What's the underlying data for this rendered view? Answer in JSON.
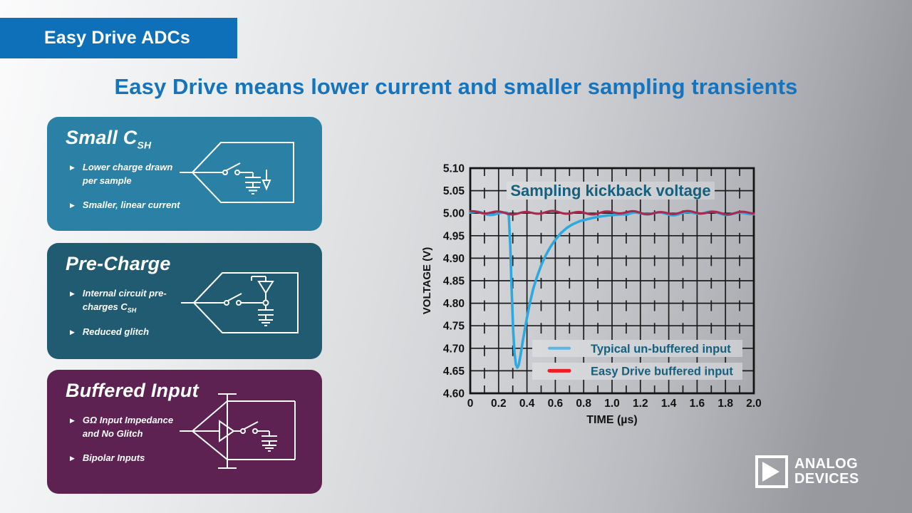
{
  "badge": {
    "label": "Easy Drive ADCs"
  },
  "title": "Easy Drive means lower current and smaller sampling transients",
  "bullet_glyph": "▶",
  "colors": {
    "badge_bg": "#0e70b9",
    "title_text": "#1673bd",
    "chart_text_teal": "#16607d",
    "axis_text": "#121212",
    "grid_line": "#1b1b1b"
  },
  "cards": [
    {
      "id": "small-csh",
      "bg": "#2b81a5",
      "heading": {
        "text": "Small C",
        "sub": "SH"
      },
      "bullets": [
        {
          "lines": [
            "Lower charge drawn",
            "per sample"
          ],
          "sub": ""
        },
        {
          "lines": [
            "Smaller, linear current"
          ],
          "sub": ""
        }
      ]
    },
    {
      "id": "pre-charge",
      "bg": "#215b71",
      "heading": {
        "text": "Pre-Charge",
        "sub": ""
      },
      "bullets": [
        {
          "lines": [
            "Internal circuit pre-",
            "charges C"
          ],
          "sub": "SH"
        },
        {
          "lines": [
            "Reduced glitch"
          ],
          "sub": ""
        }
      ]
    },
    {
      "id": "buffered-input",
      "bg": "#5d2252",
      "heading": {
        "text": "Buffered Input",
        "sub": ""
      },
      "bullets": [
        {
          "lines": [
            "GΩ Input Impedance",
            "and No Glitch"
          ],
          "sub": ""
        },
        {
          "lines": [
            "Bipolar Inputs"
          ],
          "sub": ""
        }
      ]
    }
  ],
  "chart_data": {
    "type": "line",
    "title": "Sampling kickback voltage",
    "xlabel": "TIME (µs)",
    "ylabel": "VOLTAGE (V)",
    "xlim": [
      0,
      2.0
    ],
    "ylim": [
      4.6,
      5.1
    ],
    "x_tick_values": [
      0,
      0.2,
      0.4,
      0.6,
      0.8,
      1.0,
      1.2,
      1.4,
      1.6,
      1.8,
      2.0
    ],
    "x_tick_labels": [
      "0",
      "0.2",
      "0.4",
      "0.6",
      "0.8",
      "1.0",
      "1.2",
      "1.4",
      "1.6",
      "1.8",
      "2.0"
    ],
    "y_tick_values": [
      4.6,
      4.65,
      4.7,
      4.75,
      4.8,
      4.85,
      4.9,
      4.95,
      5.0,
      5.05,
      5.1
    ],
    "y_tick_labels": [
      "4.60",
      "4.65",
      "4.70",
      "4.75",
      "4.80",
      "4.85",
      "4.90",
      "4.95",
      "5.00",
      "5.05",
      "5.10"
    ],
    "minor_x_step": 0.1,
    "grid": true,
    "legend_position": "inside-lower-right",
    "series": [
      {
        "name": "Typical un-buffered input",
        "line_color": "#2ea9e0",
        "legend_color": "#5ab6e6",
        "points": [
          [
            0,
            5.0
          ],
          [
            0.26,
            5.0
          ],
          [
            0.272,
            4.995
          ],
          [
            0.282,
            4.93
          ],
          [
            0.292,
            4.83
          ],
          [
            0.302,
            4.745
          ],
          [
            0.312,
            4.69
          ],
          [
            0.322,
            4.664
          ],
          [
            0.332,
            4.657
          ],
          [
            0.342,
            4.663
          ],
          [
            0.355,
            4.685
          ],
          [
            0.37,
            4.715
          ],
          [
            0.385,
            4.742
          ],
          [
            0.4,
            4.768
          ],
          [
            0.42,
            4.8
          ],
          [
            0.445,
            4.833
          ],
          [
            0.47,
            4.858
          ],
          [
            0.5,
            4.884
          ],
          [
            0.53,
            4.905
          ],
          [
            0.565,
            4.925
          ],
          [
            0.6,
            4.941
          ],
          [
            0.64,
            4.956
          ],
          [
            0.68,
            4.967
          ],
          [
            0.72,
            4.975
          ],
          [
            0.77,
            4.982
          ],
          [
            0.83,
            4.987
          ],
          [
            0.9,
            4.992
          ],
          [
            0.97,
            4.995
          ],
          [
            1.05,
            4.997
          ],
          [
            1.15,
            4.998
          ],
          [
            1.3,
            4.999
          ],
          [
            1.5,
            5.0
          ],
          [
            1.75,
            5.0
          ],
          [
            2.0,
            5.0
          ]
        ]
      },
      {
        "name": "Easy Drive buffered input",
        "line_color": "#a8294e",
        "legend_color": "#ee1d23",
        "points": [
          [
            0,
            5.0
          ],
          [
            2.0,
            5.0
          ]
        ]
      }
    ]
  },
  "logo": {
    "line1": "ANALOG",
    "line2": "DEVICES"
  }
}
